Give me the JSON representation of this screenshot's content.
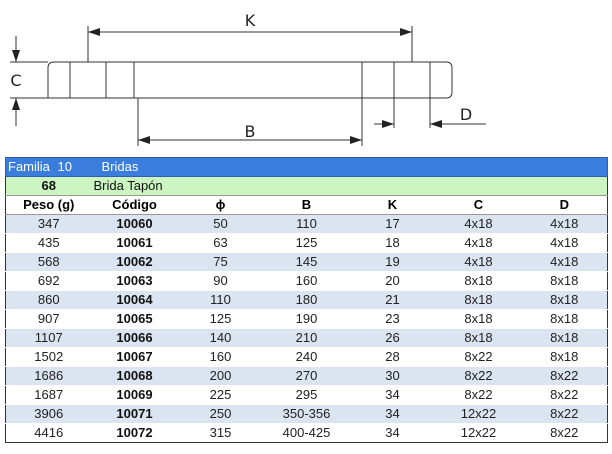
{
  "drawing": {
    "labels": {
      "k": "K",
      "c": "C",
      "b": "B",
      "d": "D"
    }
  },
  "table": {
    "family_label": "Familia",
    "family_number": "10",
    "family_name": "Bridas",
    "product_code": "68",
    "product_name": "Brida Tapón",
    "headers": [
      "Peso (g)",
      "Código",
      "ϕ",
      "B",
      "K",
      "C",
      "D"
    ],
    "rows": [
      [
        "347",
        "10060",
        "50",
        "110",
        "17",
        "4x18",
        "4x18"
      ],
      [
        "435",
        "10061",
        "63",
        "125",
        "18",
        "4x18",
        "4x18"
      ],
      [
        "568",
        "10062",
        "75",
        "145",
        "19",
        "4x18",
        "4x18"
      ],
      [
        "692",
        "10063",
        "90",
        "160",
        "20",
        "8x18",
        "8x18"
      ],
      [
        "860",
        "10064",
        "110",
        "180",
        "21",
        "8x18",
        "8x18"
      ],
      [
        "907",
        "10065",
        "125",
        "190",
        "23",
        "8x18",
        "8x18"
      ],
      [
        "1107",
        "10066",
        "140",
        "210",
        "26",
        "8x18",
        "8x18"
      ],
      [
        "1502",
        "10067",
        "160",
        "240",
        "28",
        "8x22",
        "8x18"
      ],
      [
        "1686",
        "10068",
        "200",
        "270",
        "30",
        "8x22",
        "8x22"
      ],
      [
        "1687",
        "10069",
        "225",
        "295",
        "34",
        "8x22",
        "8x22"
      ],
      [
        "3906",
        "10071",
        "250",
        "350-356",
        "34",
        "12x22",
        "8x22"
      ],
      [
        "4416",
        "10072",
        "315",
        "400-425",
        "34",
        "12x22",
        "8x22"
      ]
    ]
  }
}
